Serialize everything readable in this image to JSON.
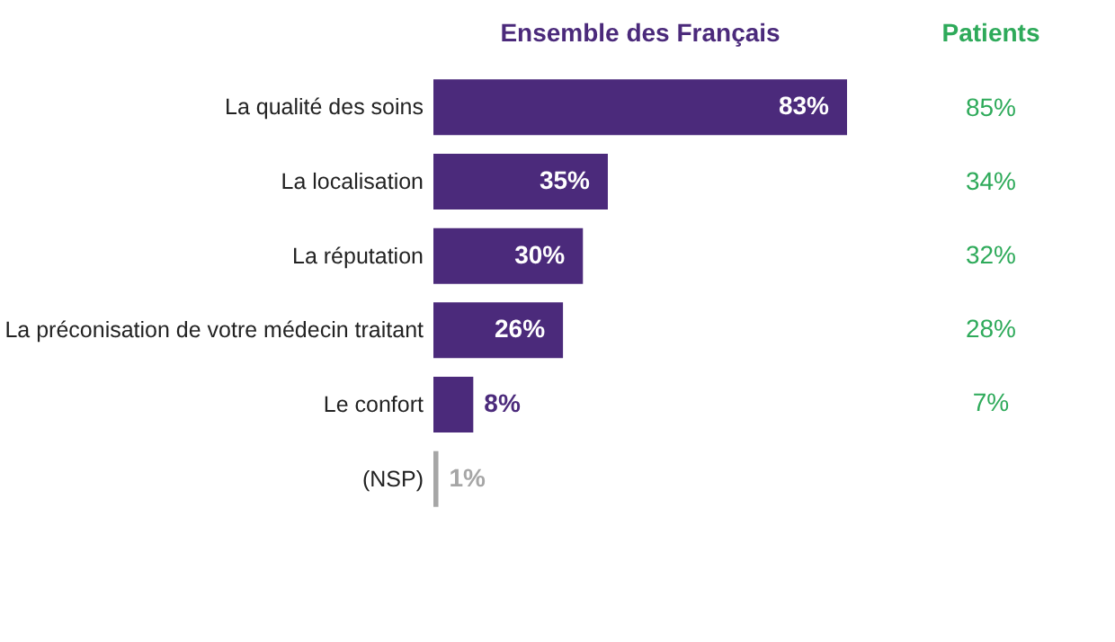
{
  "chart_data": [
    {
      "type": "bar",
      "orientation": "horizontal",
      "title": "Ensemble des Français",
      "categories": [
        "La qualité des soins",
        "La localisation",
        "La réputation",
        "La préconisation de votre médecin traitant",
        "Le confort",
        "(NSP)"
      ],
      "values": [
        83,
        35,
        30,
        26,
        8,
        1
      ],
      "colors": [
        "#4b2a7b",
        "#4b2a7b",
        "#4b2a7b",
        "#4b2a7b",
        "#4b2a7b",
        "#a6a6a6"
      ],
      "value_labels": [
        "83%",
        "35%",
        "30%",
        "26%",
        "8%",
        "1%"
      ]
    },
    {
      "type": "other",
      "title": "Patients",
      "values": [
        85,
        34,
        32,
        28,
        7,
        null
      ],
      "value_labels": [
        "85%",
        "34%",
        "32%",
        "28%",
        "7%",
        null
      ],
      "color": "#2eaa5a"
    }
  ]
}
